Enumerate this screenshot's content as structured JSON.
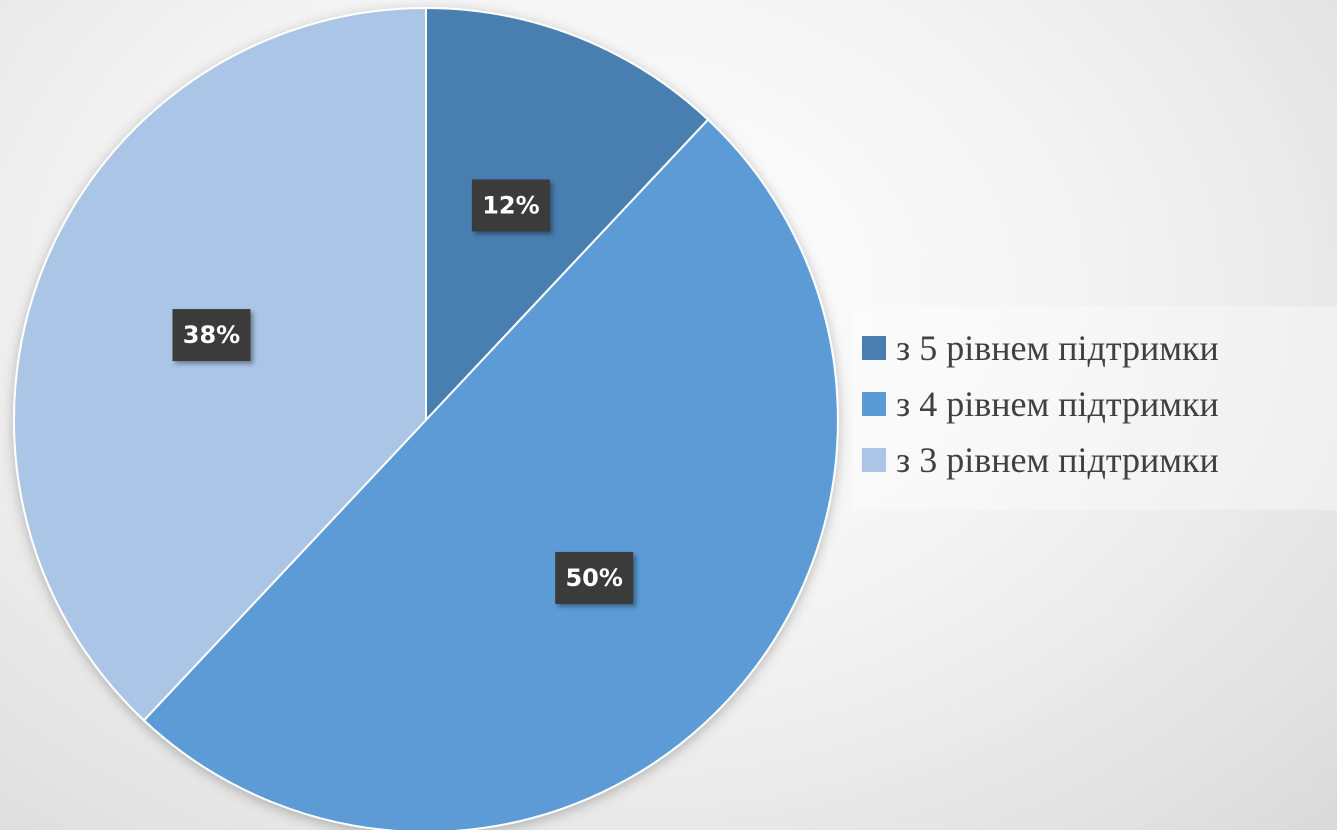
{
  "chart_data": {
    "type": "pie",
    "title": "",
    "categories": [
      "з 5 рівнем підтримки",
      "з 4 рівнем підтримки",
      "з 3 рівнем підтримки"
    ],
    "values": [
      12,
      50,
      38
    ],
    "data_labels": [
      "12%",
      "50%",
      "38%"
    ],
    "colors": [
      "#4a7eb0",
      "#5b9bd5",
      "#abc5e6"
    ],
    "legend_position": "right",
    "start_angle": "12 o'clock, clockwise"
  }
}
